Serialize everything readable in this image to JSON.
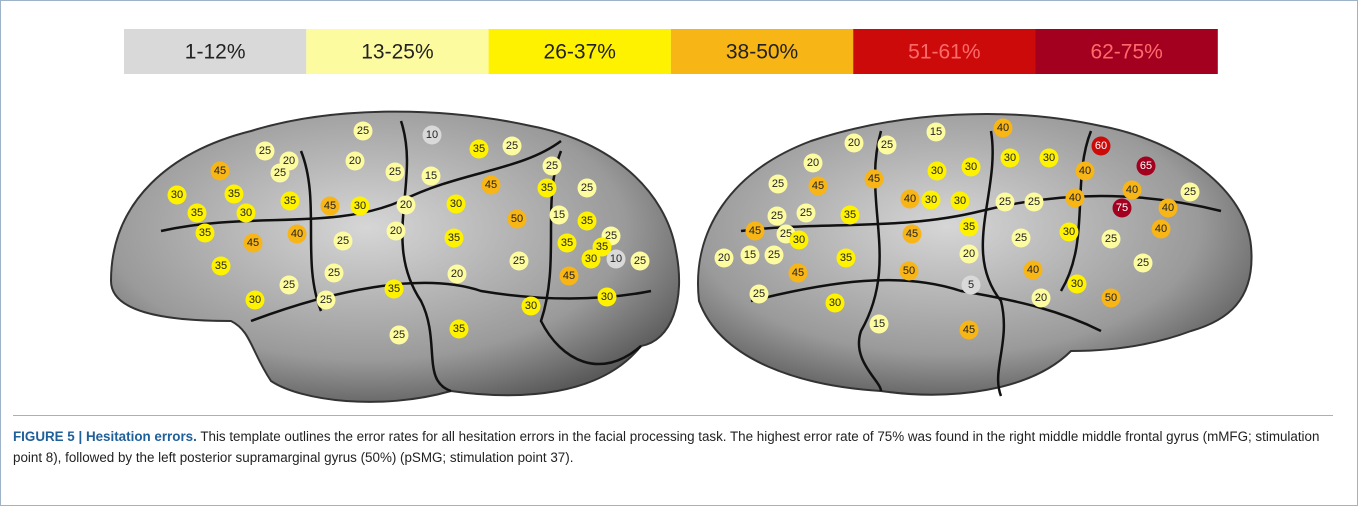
{
  "legend": [
    {
      "label": "1-12%",
      "color": "#d9d9d9"
    },
    {
      "label": "13-25%",
      "color": "#fdfb9f"
    },
    {
      "label": "26-37%",
      "color": "#fff200"
    },
    {
      "label": "38-50%",
      "color": "#f7b516"
    },
    {
      "label": "51-61%",
      "color": "#cc0a0a"
    },
    {
      "label": "62-75%",
      "color": "#a3001f"
    }
  ],
  "left_hemisphere": {
    "points": [
      25,
      10,
      25,
      45,
      20,
      20,
      35,
      25,
      25,
      25,
      15,
      25,
      30,
      35,
      35,
      45,
      30,
      20,
      45,
      35,
      25,
      35,
      30,
      30,
      50,
      15,
      35,
      35,
      45,
      40,
      25,
      20,
      35,
      35,
      25,
      35,
      20,
      25,
      30,
      10,
      25,
      35,
      25,
      25,
      45,
      35,
      30,
      30,
      25,
      30,
      25,
      35
    ]
  },
  "right_hemisphere": {
    "points": [
      15,
      40,
      20,
      25,
      60,
      20,
      30,
      30,
      30,
      30,
      65,
      25,
      45,
      45,
      40,
      40,
      25,
      30,
      40,
      30,
      25,
      25,
      40,
      75,
      40,
      25,
      25,
      35,
      45,
      25,
      35,
      30,
      25,
      40,
      30,
      45,
      25,
      15,
      20,
      25,
      35,
      20,
      25,
      45,
      50,
      40,
      5,
      30,
      25,
      20,
      50,
      30,
      15,
      45
    ]
  },
  "caption": {
    "label": "FIGURE 5 | Hesitation errors.",
    "text": "This template outlines the error rates for all hesitation errors in the facial processing task. The highest error rate of 75% was found in the right middle middle frontal gyrus (mMFG; stimulation point 8), followed by the left posterior supramarginal gyrus (50%) (pSMG; stimulation point 37)."
  }
}
